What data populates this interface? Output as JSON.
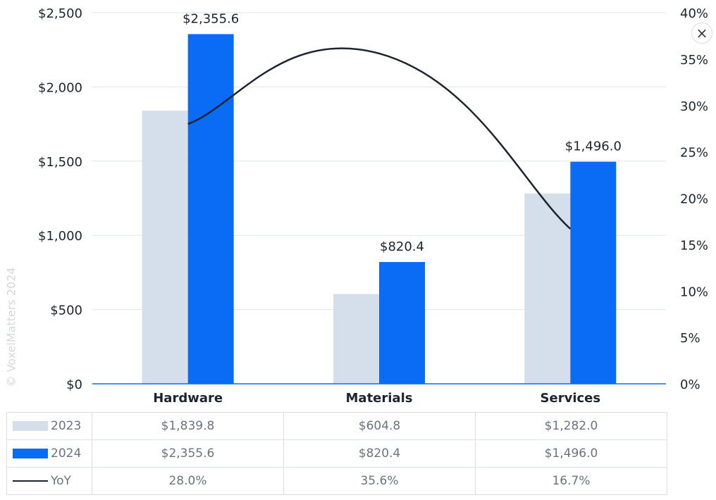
{
  "chart_data": {
    "type": "bar",
    "categories": [
      "Hardware",
      "Materials",
      "Services"
    ],
    "series": [
      {
        "name": "2023",
        "values": [
          1839.8,
          604.8,
          1282.0
        ],
        "color": "#d5deeb",
        "labels": [
          "$1,839.8",
          "$604.8",
          "$1,282.0"
        ]
      },
      {
        "name": "2024",
        "values": [
          2355.6,
          820.4,
          1496.0
        ],
        "color": "#0a6cf5",
        "labels": [
          "$2,355.6",
          "$820.4",
          "$1,496.0"
        ]
      },
      {
        "name": "YoY",
        "type": "line",
        "axis": "right",
        "values": [
          28.0,
          35.6,
          16.7
        ],
        "color": "#1c2430",
        "labels": [
          "28.0%",
          "35.6%",
          "16.7%"
        ]
      }
    ],
    "ylim": [
      0,
      2500
    ],
    "y_ticks": [
      "$0",
      "$500",
      "$1,000",
      "$1,500",
      "$2,000",
      "$2,500"
    ],
    "y2lim": [
      0,
      40
    ],
    "y2_ticks": [
      "0%",
      "5%",
      "10%",
      "15%",
      "20%",
      "25%",
      "30%",
      "35%",
      "40%"
    ],
    "data_labels": [
      "$2,355.6",
      "$820.4",
      "$1,496.0"
    ],
    "grid": true,
    "legend": "bottom-table"
  },
  "watermark": "© VoxelMatters 2024",
  "close_icon": "×"
}
